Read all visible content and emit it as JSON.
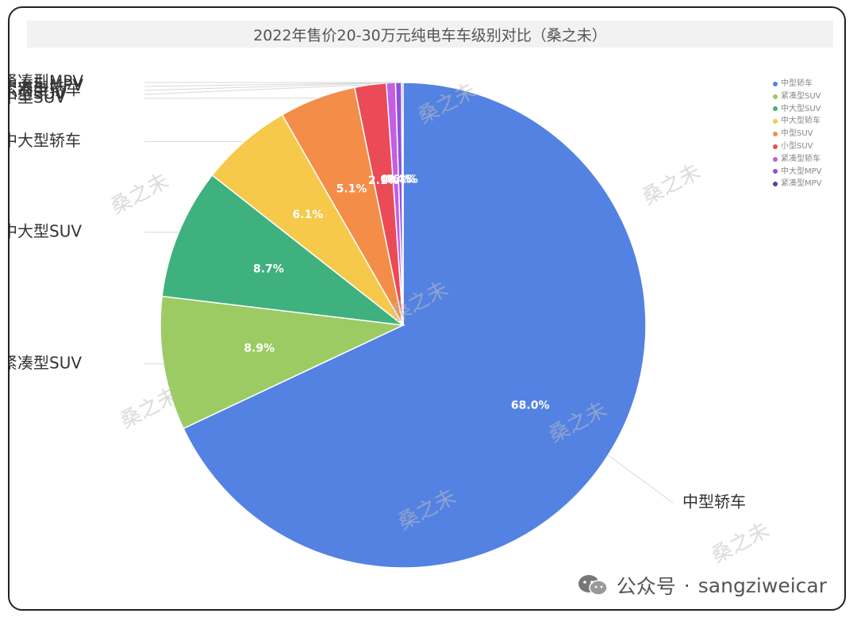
{
  "title": "2022年售价20-30万元纯电车车级别对比（桑之未）",
  "watermark": "桑之未",
  "footer": {
    "label": "公众号",
    "separator": "·",
    "account": "sangziweicar"
  },
  "chart_data": {
    "type": "pie",
    "title": "2022年售价20-30万元纯电车车级别对比（桑之未）",
    "legend_position": "right",
    "slices": [
      {
        "name": "中型轿车",
        "value": 68.0,
        "label": "68.0%",
        "color": "#5482e3"
      },
      {
        "name": "紧凑型SUV",
        "value": 8.9,
        "label": "8.9%",
        "color": "#9ccb63"
      },
      {
        "name": "中大型SUV",
        "value": 8.7,
        "label": "8.7%",
        "color": "#3eb17e"
      },
      {
        "name": "中大型轿车",
        "value": 6.1,
        "label": "6.1%",
        "color": "#f6c94a"
      },
      {
        "name": "中型SUV",
        "value": 5.1,
        "label": "5.1%",
        "color": "#f48d48"
      },
      {
        "name": "小型SUV",
        "value": 2.1,
        "label": "2.1%",
        "color": "#ea4b56"
      },
      {
        "name": "紧凑型轿车",
        "value": 0.6,
        "label": "0.6%",
        "color": "#c45ee3"
      },
      {
        "name": "中大型MPV",
        "value": 0.4,
        "label": "0.4%",
        "color": "#8e52e0"
      },
      {
        "name": "紧凑型MPV",
        "value": 0.1,
        "label": "0.1%",
        "color": "#4b3fb0"
      }
    ]
  }
}
